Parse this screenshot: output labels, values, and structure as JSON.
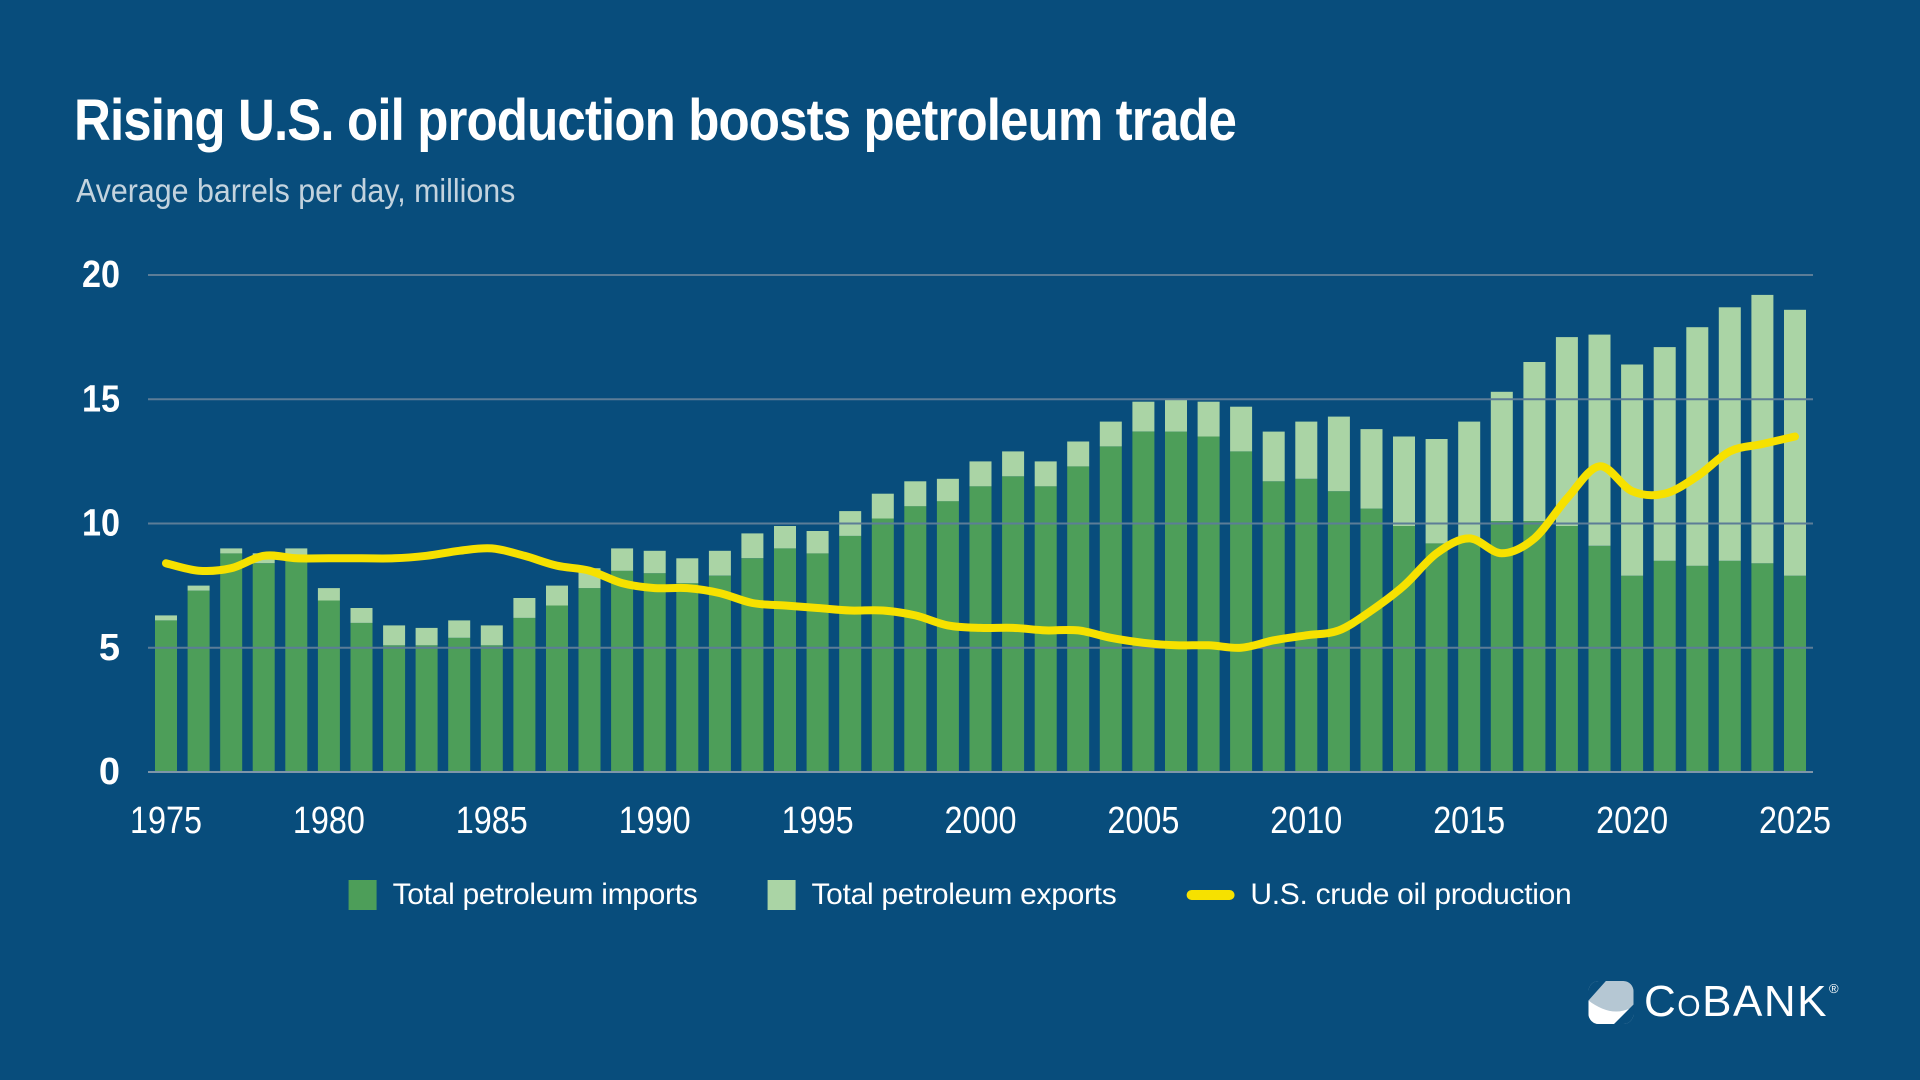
{
  "header": {
    "title": "Rising U.S. oil production boosts petroleum trade",
    "subtitle": "Average barrels per day, millions"
  },
  "legend": {
    "items": [
      {
        "label": "Total petroleum imports",
        "color": "#4D9E59",
        "type": "square"
      },
      {
        "label": "Total petroleum exports",
        "color": "#AAD4A5",
        "type": "square"
      },
      {
        "label": "U.S. crude oil production",
        "color": "#F6E100",
        "type": "line"
      }
    ]
  },
  "logo": {
    "text_c": "C",
    "text_o": "O",
    "text_rest": "BANK",
    "registered": "®"
  },
  "colors": {
    "background": "#084D7C",
    "title": "#FFFFFF",
    "subtitle": "#C3D3DE",
    "bar_imports": "#4D9E59",
    "bar_exports": "#AAD4A5",
    "production_line": "#F6E100",
    "gridline": "#5C7D97",
    "axis_line": "#7E95A9",
    "tick_label": "#FFFFFF",
    "logo_icon_light": "#B5C7D3",
    "logo_icon_white": "#FFFFFF"
  },
  "chart_data": {
    "type": "bar",
    "combo": "stacked-bar-with-line-overlay",
    "title": "Rising U.S. oil production boosts petroleum trade",
    "subtitle_unit": "Average barrels per day, millions",
    "xlabel": "",
    "ylabel": "Average barrels per day, millions",
    "ylim": [
      0,
      20
    ],
    "yticks": [
      0,
      5,
      10,
      15,
      20
    ],
    "xticks": [
      1975,
      1980,
      1985,
      1990,
      1995,
      2000,
      2005,
      2010,
      2015,
      2020,
      2025
    ],
    "grid": true,
    "legend_position": "bottom",
    "x": [
      1975,
      1976,
      1977,
      1978,
      1979,
      1980,
      1981,
      1982,
      1983,
      1984,
      1985,
      1986,
      1987,
      1988,
      1989,
      1990,
      1991,
      1992,
      1993,
      1994,
      1995,
      1996,
      1997,
      1998,
      1999,
      2000,
      2001,
      2002,
      2003,
      2004,
      2005,
      2006,
      2007,
      2008,
      2009,
      2010,
      2011,
      2012,
      2013,
      2014,
      2015,
      2016,
      2017,
      2018,
      2019,
      2020,
      2021,
      2022,
      2023,
      2024,
      2025
    ],
    "series": [
      {
        "name": "Total petroleum imports",
        "type": "bar",
        "stacked": true,
        "color": "#4D9E59",
        "values": [
          6.1,
          7.3,
          8.8,
          8.4,
          8.5,
          6.9,
          6.0,
          5.1,
          5.1,
          5.4,
          5.1,
          6.2,
          6.7,
          7.4,
          8.1,
          8.0,
          7.6,
          7.9,
          8.6,
          9.0,
          8.8,
          9.5,
          10.2,
          10.7,
          10.9,
          11.5,
          11.9,
          11.5,
          12.3,
          13.1,
          13.7,
          13.7,
          13.5,
          12.9,
          11.7,
          11.8,
          11.3,
          10.6,
          9.9,
          9.2,
          9.4,
          10.1,
          10.1,
          9.9,
          9.1,
          7.9,
          8.5,
          8.3,
          8.5,
          8.4,
          7.9
        ]
      },
      {
        "name": "Total petroleum exports",
        "type": "bar",
        "stacked": true,
        "color": "#AAD4A5",
        "values": [
          0.2,
          0.2,
          0.2,
          0.4,
          0.5,
          0.5,
          0.6,
          0.8,
          0.7,
          0.7,
          0.8,
          0.8,
          0.8,
          0.8,
          0.9,
          0.9,
          1.0,
          1.0,
          1.0,
          0.9,
          0.9,
          1.0,
          1.0,
          1.0,
          0.9,
          1.0,
          1.0,
          1.0,
          1.0,
          1.0,
          1.2,
          1.3,
          1.4,
          1.8,
          2.0,
          2.3,
          3.0,
          3.2,
          3.6,
          4.2,
          4.7,
          5.2,
          6.4,
          7.6,
          8.5,
          8.5,
          8.6,
          9.6,
          10.2,
          10.8,
          10.7
        ]
      },
      {
        "name": "U.S. crude oil production",
        "type": "line",
        "color": "#F6E100",
        "values": [
          8.4,
          8.1,
          8.2,
          8.7,
          8.6,
          8.6,
          8.6,
          8.6,
          8.7,
          8.9,
          9.0,
          8.7,
          8.3,
          8.1,
          7.6,
          7.4,
          7.4,
          7.2,
          6.8,
          6.7,
          6.6,
          6.5,
          6.5,
          6.3,
          5.9,
          5.8,
          5.8,
          5.7,
          5.7,
          5.4,
          5.2,
          5.1,
          5.1,
          5.0,
          5.3,
          5.5,
          5.7,
          6.5,
          7.5,
          8.8,
          9.4,
          8.8,
          9.4,
          11.0,
          12.3,
          11.3,
          11.2,
          11.9,
          12.9,
          13.2,
          13.5
        ]
      }
    ]
  }
}
